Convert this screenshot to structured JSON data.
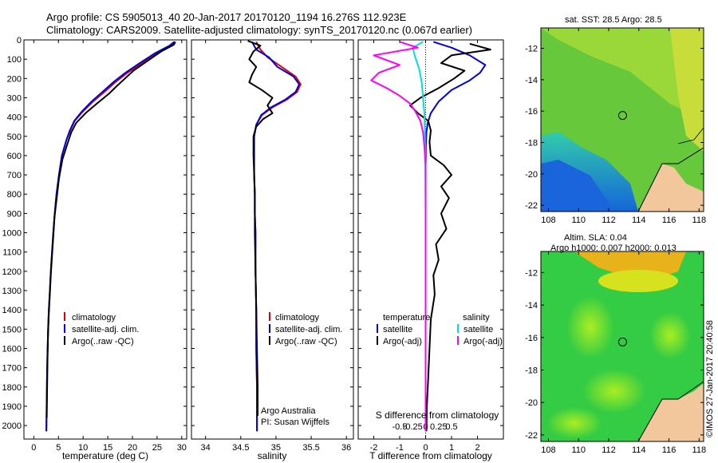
{
  "header": {
    "line1": "Argo profile: CS 5905013_40 20-Jan-2017 20170120_1194 16.276S 112.923E",
    "line2": "Climatology: CARS2009. Satellite-adjusted climatology: synTS_20170120.nc (0.067d earlier)"
  },
  "colors": {
    "climatology": "#e00000",
    "satellite": "#0000e0",
    "argo": "#000000",
    "cyan": "#00e0e0",
    "magenta": "#ff00ff"
  },
  "chart_data": [
    {
      "type": "line",
      "name": "temperature",
      "xlabel": "temperature (deg C)",
      "ylabel": "",
      "xlim": [
        -2,
        31
      ],
      "ylim": [
        2070,
        0
      ],
      "xticks": [
        0,
        5,
        10,
        15,
        20,
        25,
        30
      ],
      "yticks": [
        0,
        100,
        200,
        300,
        400,
        500,
        600,
        700,
        800,
        900,
        1000,
        1100,
        1200,
        1300,
        1400,
        1500,
        1600,
        1700,
        1800,
        1900,
        2000
      ],
      "legend": [
        "climatology",
        "satellite-adj. clim.",
        "Argo(..raw -QC)"
      ],
      "series": [
        {
          "name": "climatology",
          "color": "#e00000",
          "x": [
            28.6,
            27.8,
            25,
            22,
            19,
            16.5,
            14.3,
            12,
            10,
            8.3,
            7.4,
            6.6,
            5.7,
            5.1,
            4.6,
            4.25,
            3.95,
            3.7,
            3.45,
            3.25,
            3.05,
            2.9,
            2.8,
            2.7,
            2.62,
            2.55
          ],
          "y": [
            10,
            30,
            70,
            120,
            170,
            220,
            270,
            320,
            370,
            420,
            470,
            520,
            600,
            700,
            800,
            900,
            1000,
            1100,
            1200,
            1300,
            1400,
            1500,
            1600,
            1700,
            1850,
            2030
          ]
        },
        {
          "name": "satellite-adj. clim.",
          "color": "#0000e0",
          "x": [
            28.5,
            27.5,
            24.5,
            21.5,
            18.6,
            16.1,
            13.9,
            11.7,
            9.8,
            8.2,
            7.3,
            6.6,
            5.7,
            5.1,
            4.6,
            4.25,
            3.95,
            3.7,
            3.45,
            3.25,
            3.05,
            2.9,
            2.8,
            2.7,
            2.62,
            2.55
          ],
          "y": [
            10,
            30,
            70,
            120,
            170,
            220,
            270,
            320,
            370,
            420,
            470,
            520,
            600,
            700,
            800,
            900,
            1000,
            1100,
            1200,
            1300,
            1400,
            1500,
            1600,
            1700,
            1850,
            2030
          ]
        },
        {
          "name": "Argo(..raw -QC)",
          "color": "#000000",
          "x": [
            28.7,
            28.4,
            25.8,
            23,
            20.2,
            18.5,
            16.8,
            15.2,
            12.8,
            10.5,
            8.6,
            7.6,
            6.8,
            5.8,
            5.1,
            4.65,
            4.2,
            3.95,
            3.7,
            3.45,
            3.25,
            3.05,
            2.9,
            2.8,
            2.7,
            2.62
          ],
          "y": [
            10,
            25,
            60,
            110,
            160,
            200,
            240,
            280,
            330,
            380,
            430,
            480,
            540,
            620,
            720,
            820,
            920,
            1020,
            1120,
            1220,
            1320,
            1420,
            1520,
            1620,
            1800,
            1960
          ]
        }
      ]
    },
    {
      "type": "line",
      "name": "salinity",
      "xlabel": "salinity",
      "ylabel": "",
      "xlim": [
        33.8,
        36.1
      ],
      "ylim": [
        2070,
        0
      ],
      "xticks": [
        34,
        34.5,
        35,
        35.5,
        36
      ],
      "legend": [
        "climatology",
        "satellite-adj. clim.",
        "Argo(..raw -QC)"
      ],
      "notes": [
        "Argo Australia",
        "PI: Susan Wijffels"
      ],
      "series": [
        {
          "name": "climatology",
          "color": "#e00000",
          "x": [
            34.72,
            34.78,
            34.88,
            35.08,
            35.28,
            35.35,
            35.3,
            35.15,
            34.95,
            34.8,
            34.72,
            34.69,
            34.69,
            34.69,
            34.7,
            34.7,
            34.71,
            34.71,
            34.72,
            34.72,
            34.73,
            34.73,
            34.73,
            34.73
          ],
          "y": [
            10,
            50,
            90,
            140,
            190,
            230,
            270,
            310,
            350,
            390,
            440,
            500,
            600,
            700,
            800,
            900,
            1000,
            1200,
            1400,
            1600,
            1800,
            1900,
            2000,
            2030
          ]
        },
        {
          "name": "satellite-adj. clim.",
          "color": "#0000e0",
          "x": [
            34.66,
            34.72,
            34.9,
            35.02,
            35.25,
            35.33,
            35.28,
            35.13,
            34.93,
            34.79,
            34.72,
            34.69,
            34.69,
            34.69,
            34.7,
            34.7,
            34.71,
            34.71,
            34.72,
            34.72,
            34.73,
            34.73,
            34.73,
            34.73
          ],
          "y": [
            10,
            50,
            90,
            140,
            190,
            230,
            270,
            310,
            350,
            390,
            440,
            500,
            600,
            700,
            800,
            900,
            1000,
            1200,
            1400,
            1600,
            1800,
            1900,
            2000,
            2030
          ]
        },
        {
          "name": "Argo(..raw -QC)",
          "color": "#000000",
          "x": [
            34.6,
            34.78,
            34.68,
            34.62,
            34.72,
            34.66,
            34.62,
            34.8,
            34.95,
            34.88,
            34.95,
            34.82,
            34.72,
            34.68,
            34.68,
            34.69,
            34.7,
            34.7,
            34.71,
            34.72,
            34.73,
            34.74,
            34.74
          ],
          "y": [
            5,
            30,
            60,
            100,
            140,
            180,
            220,
            260,
            300,
            340,
            380,
            410,
            450,
            500,
            600,
            700,
            800,
            1000,
            1200,
            1400,
            1600,
            1800,
            1950
          ]
        }
      ]
    },
    {
      "type": "line",
      "name": "difference",
      "xlabel": "T difference from climatology",
      "xlabel2": "S difference from climatology",
      "xlim": [
        -2.6,
        3.0
      ],
      "ylim": [
        2070,
        0
      ],
      "xticks": [
        -2,
        -1,
        0,
        1,
        2
      ],
      "xticks_s": [
        -0.5,
        -0.25,
        0,
        0.25,
        0.5
      ],
      "legend_titles": [
        "temperature",
        "salinity"
      ],
      "legend": [
        "satellite",
        "Argo(-adj)",
        "satellite",
        "Argo(-adj)"
      ],
      "series": [
        {
          "name": "T satellite",
          "color": "#0000e0",
          "x": [
            0.3,
            1.0,
            1.7,
            2.3,
            2.1,
            1.7,
            1.0,
            0.5,
            0.2,
            0.08,
            0.03,
            0.01,
            0,
            0,
            0,
            0,
            0,
            0,
            0
          ],
          "y": [
            10,
            40,
            80,
            130,
            170,
            210,
            260,
            320,
            380,
            430,
            480,
            550,
            650,
            800,
            1000,
            1300,
            1600,
            1900,
            2030
          ]
        },
        {
          "name": "T Argo(-adj)",
          "color": "#000000",
          "x": [
            1.7,
            2.5,
            1.0,
            0.6,
            1.5,
            1.1,
            0.5,
            -0.2,
            -0.6,
            -0.3,
            0.1,
            0.2,
            0.15,
            0.2,
            0.7,
            1.0,
            0.6,
            0.9,
            0.6,
            0.8,
            0.4,
            0.5,
            0.3,
            0.35,
            0.2,
            0.15,
            0.1,
            0.05,
            0.03
          ],
          "y": [
            20,
            50,
            80,
            120,
            160,
            200,
            250,
            300,
            340,
            380,
            420,
            470,
            530,
            600,
            650,
            700,
            760,
            820,
            900,
            980,
            1060,
            1140,
            1220,
            1320,
            1450,
            1600,
            1750,
            1900,
            2030
          ]
        },
        {
          "name": "S satellite",
          "color": "#00e0e0",
          "x": [
            -0.1,
            -0.5,
            -0.4,
            -0.25,
            -0.15,
            -0.1,
            -0.05,
            -0.03,
            -0.02,
            -0.01,
            0,
            0,
            0,
            0
          ],
          "y": [
            10,
            40,
            90,
            150,
            220,
            300,
            380,
            460,
            550,
            700,
            900,
            1200,
            1600,
            2030
          ]
        },
        {
          "name": "S Argo(-adj)",
          "color": "#ff00ff",
          "x": [
            -1.0,
            -0.3,
            -2.0,
            -1.0,
            -1.8,
            -2.1,
            -1.5,
            -1.0,
            -0.6,
            -0.4,
            -0.2,
            -0.1,
            -0.05,
            0,
            0,
            0,
            0,
            0
          ],
          "y": [
            10,
            40,
            80,
            130,
            170,
            210,
            250,
            290,
            330,
            370,
            420,
            480,
            550,
            650,
            800,
            1100,
            1500,
            2030
          ]
        }
      ]
    },
    {
      "type": "heatmap",
      "name": "sst-map",
      "title": "sat. SST: 28.5  Argo: 28.5",
      "xlim": [
        107.5,
        118.3
      ],
      "ylim": [
        -22.4,
        -10.7
      ],
      "xticks": [
        108,
        110,
        112,
        114,
        116,
        118
      ],
      "yticks": [
        -12,
        -14,
        -16,
        -18,
        -20,
        -22
      ],
      "argo_position": [
        112.923,
        -16.276
      ]
    },
    {
      "type": "heatmap",
      "name": "sla-map",
      "title": "Altim. SLA: 0.04",
      "subtitle": "Argo h1000: 0.007 h2000: 0.013",
      "xlim": [
        107.5,
        118.3
      ],
      "ylim": [
        -22.4,
        -10.7
      ],
      "xticks": [
        108,
        110,
        112,
        114,
        116,
        118
      ],
      "yticks": [
        -12,
        -14,
        -16,
        -18,
        -20,
        -22
      ],
      "argo_position": [
        112.923,
        -16.276
      ]
    }
  ],
  "footer": {
    "credit": "©IMOS 27-Jan-2017 20:40:58"
  }
}
